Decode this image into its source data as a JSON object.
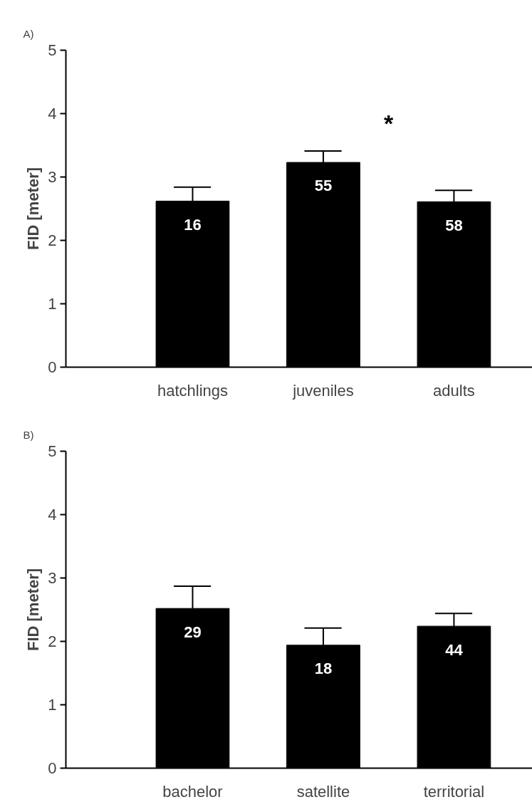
{
  "chart_data": [
    {
      "type": "bar",
      "title": "A)",
      "ylabel": "FID [meter]",
      "categories": [
        "hatchlings",
        "juveniles",
        "adults"
      ],
      "series": [
        {
          "color": "#000000",
          "values": [
            2.62,
            3.23,
            2.61
          ],
          "errors": [
            [
              2.62,
              2.84
            ],
            [
              3.23,
              3.41
            ],
            [
              2.61,
              2.79
            ]
          ]
        }
      ],
      "ylim": [
        0,
        5
      ],
      "yticks": [
        0,
        1,
        2,
        3,
        4,
        5
      ],
      "grid": false,
      "annotations": [
        "16",
        "55",
        "58",
        "*"
      ]
    },
    {
      "type": "bar",
      "title": "B)",
      "ylabel": "FID [meter]",
      "categories": [
        "bachelor",
        "satellite",
        "territorial"
      ],
      "series": [
        {
          "color": "#000000",
          "values": [
            2.52,
            1.94,
            2.24
          ],
          "errors": [
            [
              2.52,
              2.87
            ],
            [
              1.94,
              2.21
            ],
            [
              2.24,
              2.44
            ]
          ]
        }
      ],
      "ylim": [
        0,
        5
      ],
      "yticks": [
        0,
        1,
        2,
        3,
        4,
        5
      ],
      "grid": false,
      "annotations": [
        "29",
        "18",
        "44"
      ]
    }
  ]
}
